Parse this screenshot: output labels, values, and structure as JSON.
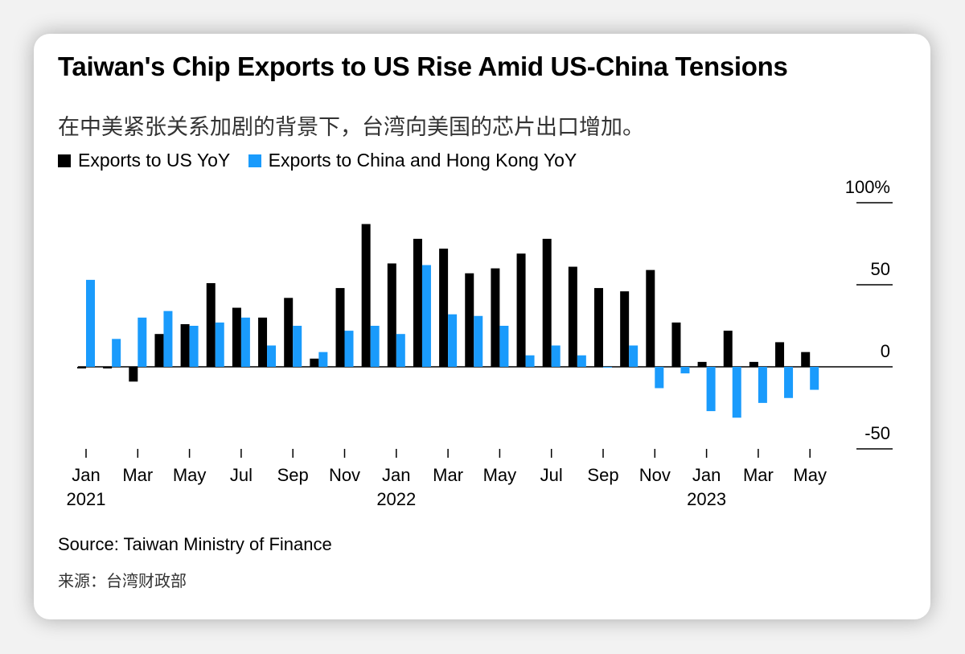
{
  "colors": {
    "us": "#000000",
    "china": "#1a9bfc",
    "axis": "#000000"
  },
  "chart_data": {
    "type": "bar",
    "title": "Taiwan's Chip Exports to US Rise Amid US-China Tensions",
    "subtitle": "在中美紧张关系加剧的背景下，台湾向美国的芯片出口增加。",
    "xlabel": "",
    "ylabel": "",
    "ylim": [
      -50,
      100
    ],
    "yticks": [
      {
        "value": 100,
        "label": "100%"
      },
      {
        "value": 50,
        "label": "50"
      },
      {
        "value": 0,
        "label": "0"
      },
      {
        "value": -50,
        "label": "-50"
      }
    ],
    "categories": [
      "Jan 2021",
      "Feb 2021",
      "Mar 2021",
      "Apr 2021",
      "May 2021",
      "Jun 2021",
      "Jul 2021",
      "Aug 2021",
      "Sep 2021",
      "Oct 2021",
      "Nov 2021",
      "Dec 2021",
      "Jan 2022",
      "Feb 2022",
      "Mar 2022",
      "Apr 2022",
      "May 2022",
      "Jun 2022",
      "Jul 2022",
      "Aug 2022",
      "Sep 2022",
      "Oct 2022",
      "Nov 2022",
      "Dec 2022",
      "Jan 2023",
      "Feb 2023",
      "Mar 2023",
      "Apr 2023",
      "May 2023",
      "Jun 2023"
    ],
    "xtick_labels": [
      {
        "index": 0,
        "month": "Jan",
        "year": "2021"
      },
      {
        "index": 2,
        "month": "Mar",
        "year": ""
      },
      {
        "index": 4,
        "month": "May",
        "year": ""
      },
      {
        "index": 6,
        "month": "Jul",
        "year": ""
      },
      {
        "index": 8,
        "month": "Sep",
        "year": ""
      },
      {
        "index": 10,
        "month": "Nov",
        "year": ""
      },
      {
        "index": 12,
        "month": "Jan",
        "year": "2022"
      },
      {
        "index": 14,
        "month": "Mar",
        "year": ""
      },
      {
        "index": 16,
        "month": "May",
        "year": ""
      },
      {
        "index": 18,
        "month": "Jul",
        "year": ""
      },
      {
        "index": 20,
        "month": "Sep",
        "year": ""
      },
      {
        "index": 22,
        "month": "Nov",
        "year": ""
      },
      {
        "index": 24,
        "month": "Jan",
        "year": "2023"
      },
      {
        "index": 26,
        "month": "Mar",
        "year": ""
      },
      {
        "index": 28,
        "month": "May",
        "year": ""
      }
    ],
    "series": [
      {
        "name": "Exports to US YoY",
        "values": [
          -1,
          -1,
          -9,
          20,
          26,
          51,
          36,
          30,
          42,
          5,
          48,
          87,
          63,
          78,
          72,
          57,
          60,
          69,
          78,
          61,
          48,
          46,
          59,
          27,
          3,
          22,
          3,
          15,
          9,
          null
        ]
      },
      {
        "name": "Exports to China and Hong Kong YoY",
        "values": [
          53,
          17,
          30,
          34,
          25,
          27,
          30,
          13,
          25,
          9,
          22,
          25,
          20,
          62,
          32,
          31,
          25,
          7,
          13,
          7,
          -0.5,
          13,
          -13,
          -4,
          -27,
          -31,
          -22,
          -19,
          -14,
          null
        ]
      }
    ],
    "source": "Source: Taiwan Ministry of Finance",
    "source_cn": "来源：台湾财政部"
  }
}
